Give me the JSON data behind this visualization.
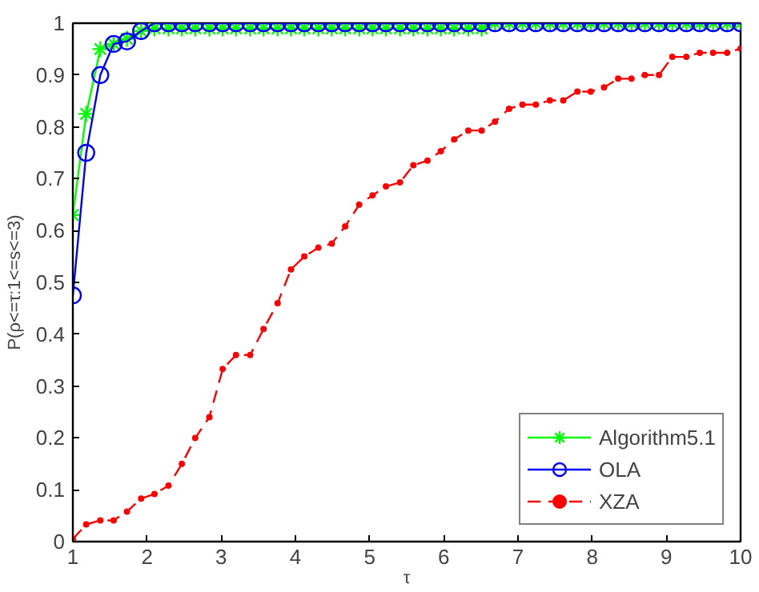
{
  "chart_data": {
    "type": "line",
    "xlabel": "τ",
    "ylabel": "P(ρ<=τ:1<=s<=3)",
    "x": [
      1,
      1.18,
      1.37,
      1.55,
      1.73,
      1.92,
      2.1,
      2.29,
      2.47,
      2.65,
      2.84,
      3.02,
      3.2,
      3.39,
      3.57,
      3.76,
      3.94,
      4.12,
      4.31,
      4.49,
      4.67,
      4.86,
      5.04,
      5.22,
      5.41,
      5.59,
      5.78,
      5.96,
      6.14,
      6.33,
      6.51,
      6.69,
      6.88,
      7.06,
      7.24,
      7.43,
      7.61,
      7.8,
      7.98,
      8.16,
      8.35,
      8.53,
      8.71,
      8.9,
      9.08,
      9.27,
      9.45,
      9.63,
      9.82,
      10
    ],
    "series": [
      {
        "name": "Algorithm5.1",
        "color": "#00ff00",
        "marker": "cross",
        "line_style": "solid",
        "values": [
          0.63,
          0.825,
          0.95,
          0.96,
          0.97,
          0.985,
          0.99,
          0.99,
          0.99,
          0.99,
          0.99,
          0.99,
          0.99,
          0.99,
          0.99,
          0.99,
          0.99,
          0.99,
          0.99,
          0.99,
          0.99,
          0.99,
          0.99,
          0.99,
          0.99,
          0.99,
          0.99,
          0.99,
          0.99,
          0.99,
          0.99,
          1,
          1,
          1,
          1,
          1,
          1,
          1,
          1,
          1,
          1,
          1,
          1,
          1,
          1,
          1,
          1,
          1,
          1,
          1
        ]
      },
      {
        "name": "OLA",
        "color": "#0000ff",
        "marker": "circle",
        "line_style": "solid",
        "values": [
          0.475,
          0.75,
          0.9,
          0.96,
          0.965,
          0.985,
          1,
          1,
          1,
          1,
          1,
          1,
          1,
          1,
          1,
          1,
          1,
          1,
          1,
          1,
          1,
          1,
          1,
          1,
          1,
          1,
          1,
          1,
          1,
          1,
          1,
          1,
          1,
          1,
          1,
          1,
          1,
          1,
          1,
          1,
          1,
          1,
          1,
          1,
          1,
          1,
          1,
          1,
          1,
          1
        ]
      },
      {
        "name": "XZA",
        "color": "#ff0000",
        "marker": "circle",
        "line_style": "dashed",
        "values": [
          0.005,
          0.033,
          0.041,
          0.041,
          0.058,
          0.083,
          0.092,
          0.108,
          0.15,
          0.2,
          0.24,
          0.333,
          0.36,
          0.36,
          0.41,
          0.46,
          0.525,
          0.55,
          0.567,
          0.575,
          0.608,
          0.65,
          0.668,
          0.685,
          0.693,
          0.726,
          0.735,
          0.753,
          0.776,
          0.793,
          0.793,
          0.81,
          0.835,
          0.843,
          0.843,
          0.851,
          0.851,
          0.868,
          0.868,
          0.876,
          0.893,
          0.893,
          0.9,
          0.9,
          0.935,
          0.935,
          0.943,
          0.943,
          0.943,
          0.951
        ]
      }
    ],
    "xlim": [
      1,
      10
    ],
    "ylim": [
      0,
      1
    ],
    "xticks": [
      1,
      2,
      3,
      4,
      5,
      6,
      7,
      8,
      9,
      10
    ],
    "yticks": [
      0,
      0.1,
      0.2,
      0.3,
      0.4,
      0.5,
      0.6,
      0.7,
      0.8,
      0.9,
      1
    ],
    "grid": false,
    "legend": "bottom right"
  }
}
